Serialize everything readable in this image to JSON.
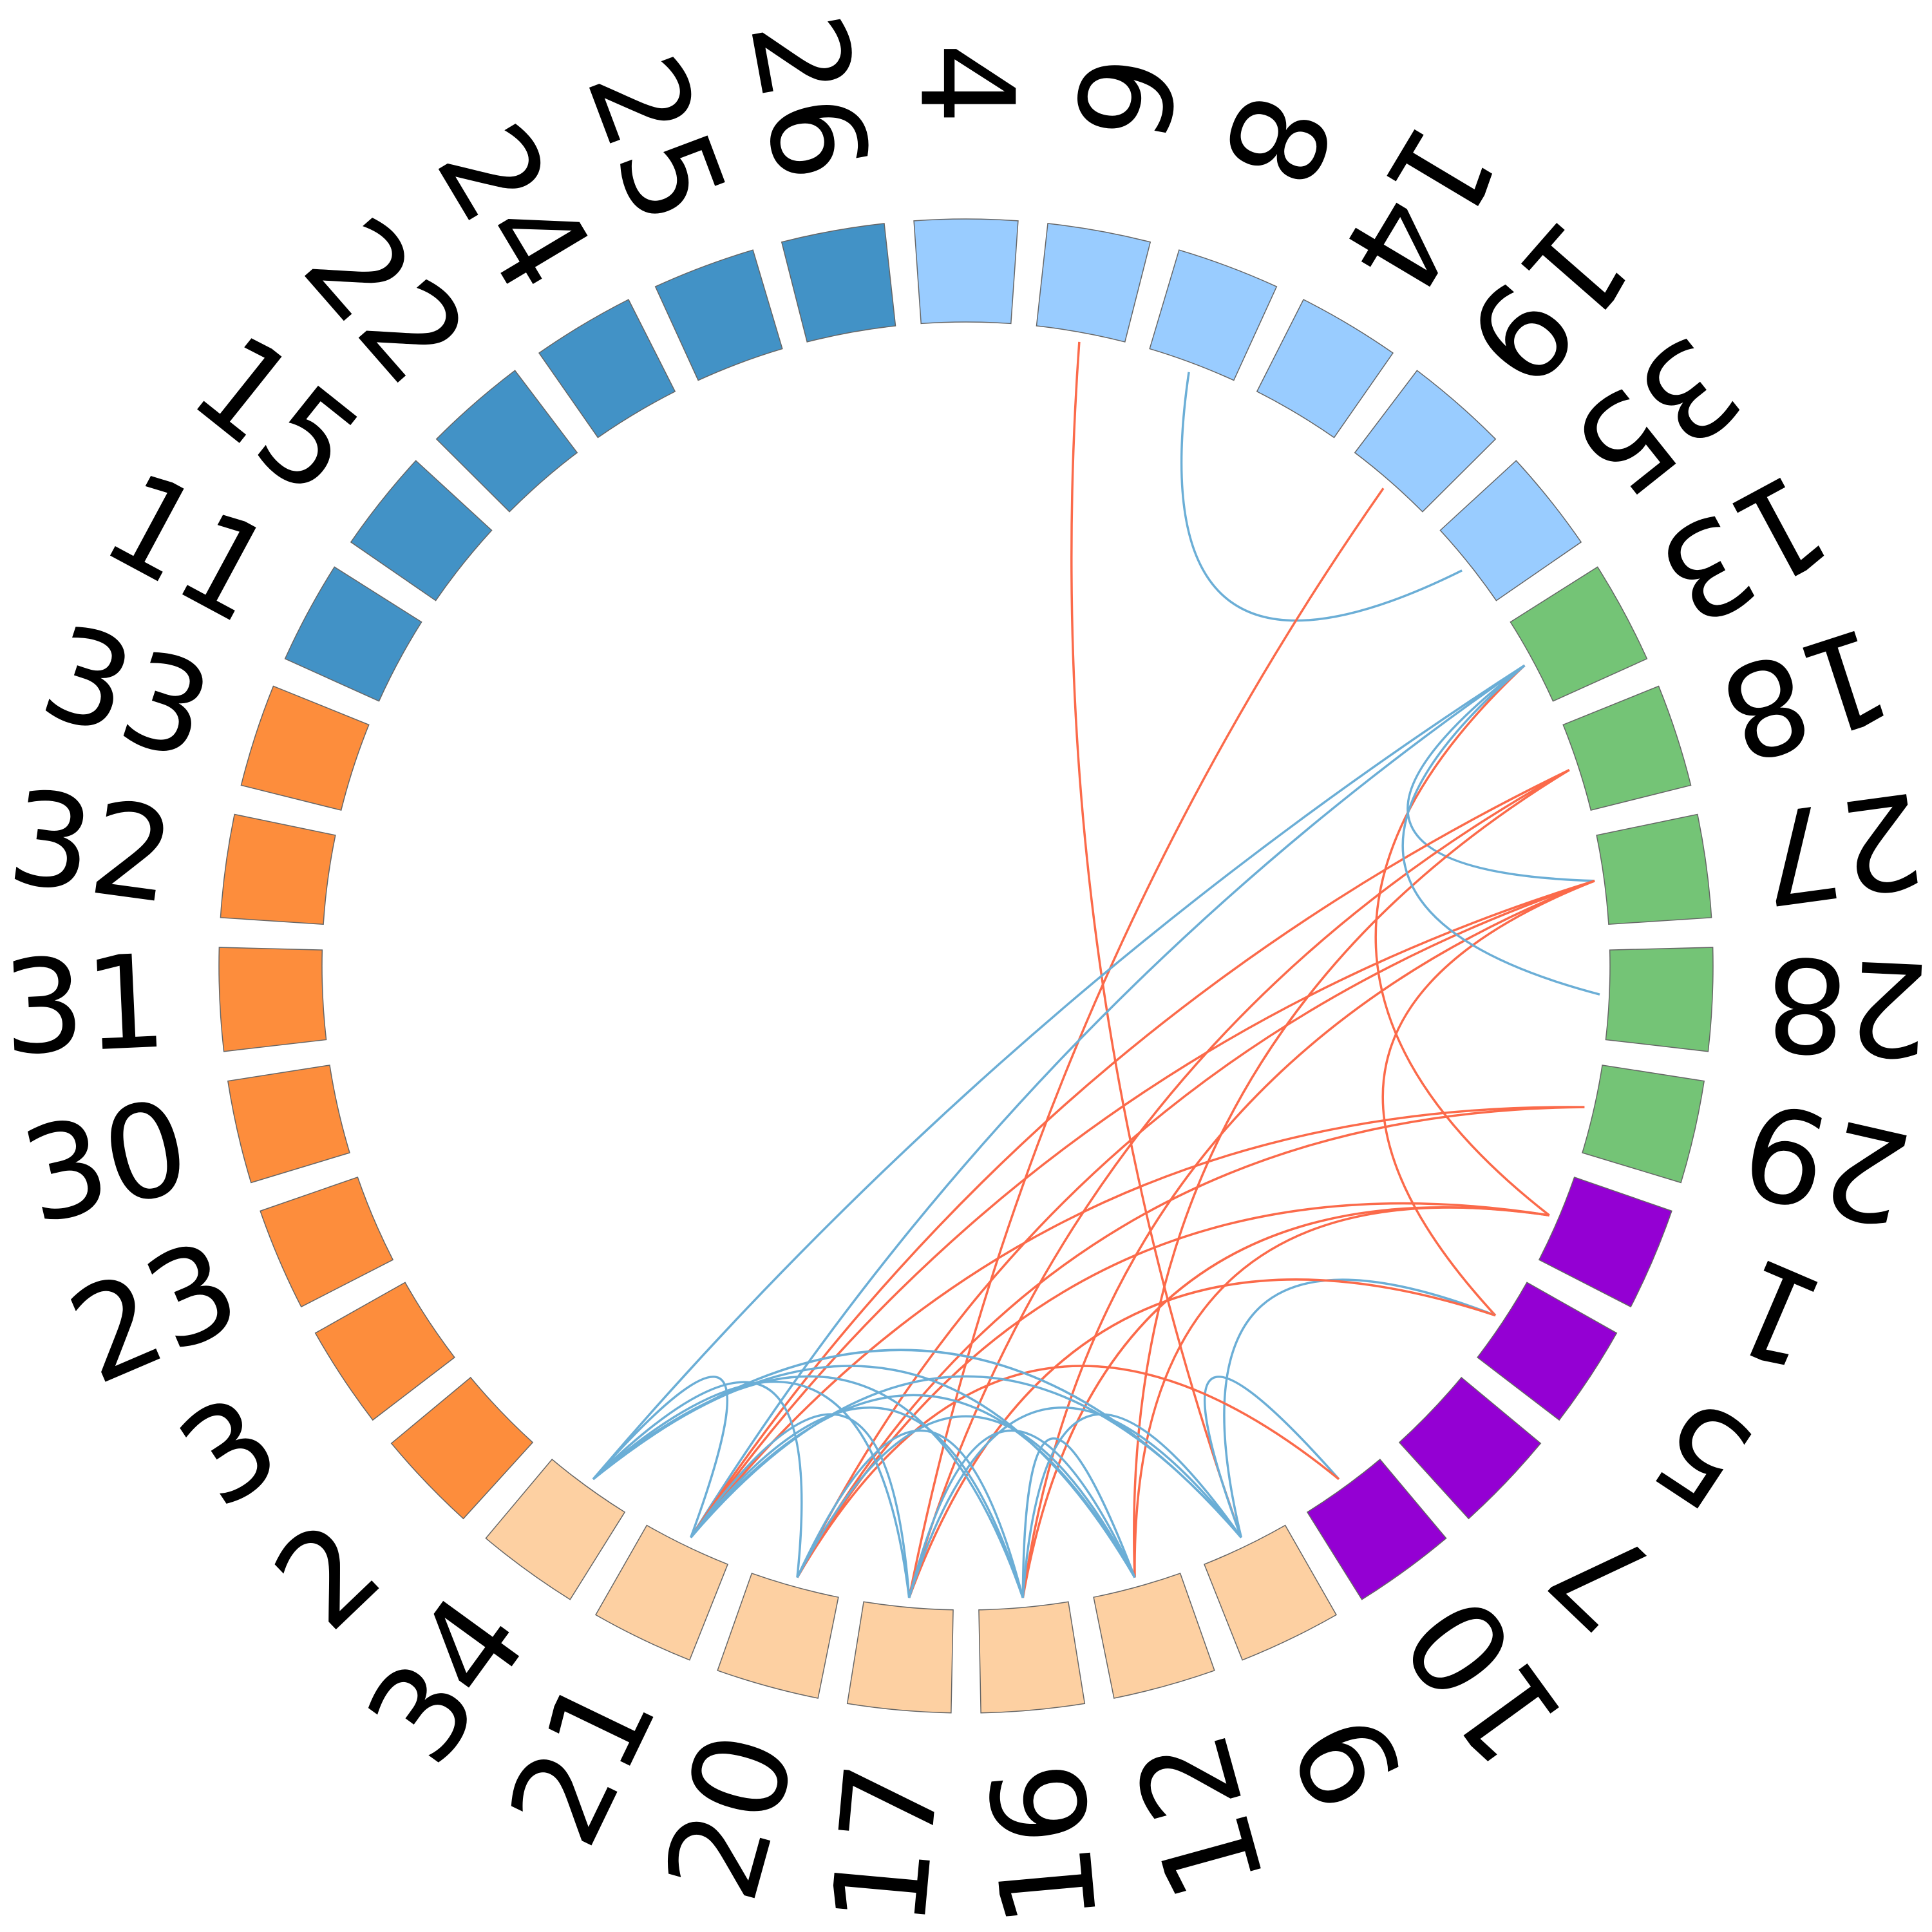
{
  "diagram": {
    "type": "chord",
    "nodes": [
      {
        "label": "4",
        "group": "light-blue"
      },
      {
        "label": "6",
        "group": "light-blue"
      },
      {
        "label": "8",
        "group": "light-blue"
      },
      {
        "label": "14",
        "group": "light-blue"
      },
      {
        "label": "19",
        "group": "light-blue"
      },
      {
        "label": "35",
        "group": "light-blue"
      },
      {
        "label": "13",
        "group": "green"
      },
      {
        "label": "18",
        "group": "green"
      },
      {
        "label": "27",
        "group": "green"
      },
      {
        "label": "28",
        "group": "green"
      },
      {
        "label": "29",
        "group": "green"
      },
      {
        "label": "1",
        "group": "purple"
      },
      {
        "label": "5",
        "group": "purple"
      },
      {
        "label": "7",
        "group": "purple"
      },
      {
        "label": "10",
        "group": "purple"
      },
      {
        "label": "9",
        "group": "peach"
      },
      {
        "label": "12",
        "group": "peach"
      },
      {
        "label": "16",
        "group": "peach"
      },
      {
        "label": "17",
        "group": "peach"
      },
      {
        "label": "20",
        "group": "peach"
      },
      {
        "label": "21",
        "group": "peach"
      },
      {
        "label": "34",
        "group": "peach"
      },
      {
        "label": "2",
        "group": "orange"
      },
      {
        "label": "3",
        "group": "orange"
      },
      {
        "label": "23",
        "group": "orange"
      },
      {
        "label": "30",
        "group": "orange"
      },
      {
        "label": "31",
        "group": "orange"
      },
      {
        "label": "32",
        "group": "orange"
      },
      {
        "label": "33",
        "group": "orange"
      },
      {
        "label": "11",
        "group": "dark-blue"
      },
      {
        "label": "15",
        "group": "dark-blue"
      },
      {
        "label": "22",
        "group": "dark-blue"
      },
      {
        "label": "24",
        "group": "dark-blue"
      },
      {
        "label": "25",
        "group": "dark-blue"
      },
      {
        "label": "26",
        "group": "dark-blue"
      }
    ],
    "group_colors": {
      "light-blue": "#99CCFF",
      "green": "#74C476",
      "purple": "#9400D3",
      "peach": "#FDD0A2",
      "orange": "#FD8D3C",
      "dark-blue": "#4292C6"
    },
    "edge_colors": {
      "blue": "#6BAED6",
      "red": "#FB6A4A"
    },
    "edges": [
      {
        "source": "6",
        "target": "9",
        "color": "red"
      },
      {
        "source": "8",
        "target": "35",
        "color": "blue"
      },
      {
        "source": "19",
        "target": "17",
        "color": "red"
      },
      {
        "source": "13",
        "target": "34",
        "color": "blue"
      },
      {
        "source": "13",
        "target": "21",
        "color": "blue"
      },
      {
        "source": "13",
        "target": "27",
        "color": "blue"
      },
      {
        "source": "13",
        "target": "1",
        "color": "red"
      },
      {
        "source": "18",
        "target": "21",
        "color": "red"
      },
      {
        "source": "18",
        "target": "17",
        "color": "red"
      },
      {
        "source": "18",
        "target": "12",
        "color": "red"
      },
      {
        "source": "27",
        "target": "21",
        "color": "red"
      },
      {
        "source": "27",
        "target": "20",
        "color": "red"
      },
      {
        "source": "27",
        "target": "16",
        "color": "red"
      },
      {
        "source": "27",
        "target": "5",
        "color": "red"
      },
      {
        "source": "28",
        "target": "13",
        "color": "blue"
      },
      {
        "source": "29",
        "target": "21",
        "color": "red"
      },
      {
        "source": "29",
        "target": "20",
        "color": "red"
      },
      {
        "source": "1",
        "target": "20",
        "color": "red"
      },
      {
        "source": "1",
        "target": "12",
        "color": "red"
      },
      {
        "source": "1",
        "target": "16",
        "color": "red"
      },
      {
        "source": "5",
        "target": "9",
        "color": "blue"
      },
      {
        "source": "5",
        "target": "17",
        "color": "red"
      },
      {
        "source": "10",
        "target": "9",
        "color": "blue"
      },
      {
        "source": "10",
        "target": "20",
        "color": "red"
      },
      {
        "source": "9",
        "target": "34",
        "color": "blue"
      },
      {
        "source": "9",
        "target": "21",
        "color": "blue"
      },
      {
        "source": "9",
        "target": "17",
        "color": "blue"
      },
      {
        "source": "9",
        "target": "16",
        "color": "blue"
      },
      {
        "source": "12",
        "target": "34",
        "color": "blue"
      },
      {
        "source": "12",
        "target": "21",
        "color": "blue"
      },
      {
        "source": "12",
        "target": "20",
        "color": "blue"
      },
      {
        "source": "12",
        "target": "16",
        "color": "blue"
      },
      {
        "source": "12",
        "target": "17",
        "color": "blue"
      },
      {
        "source": "16",
        "target": "34",
        "color": "blue"
      },
      {
        "source": "16",
        "target": "21",
        "color": "blue"
      },
      {
        "source": "16",
        "target": "20",
        "color": "blue"
      },
      {
        "source": "17",
        "target": "34",
        "color": "blue"
      },
      {
        "source": "17",
        "target": "21",
        "color": "blue"
      },
      {
        "source": "20",
        "target": "34",
        "color": "blue"
      },
      {
        "source": "21",
        "target": "34",
        "color": "blue"
      }
    ]
  }
}
